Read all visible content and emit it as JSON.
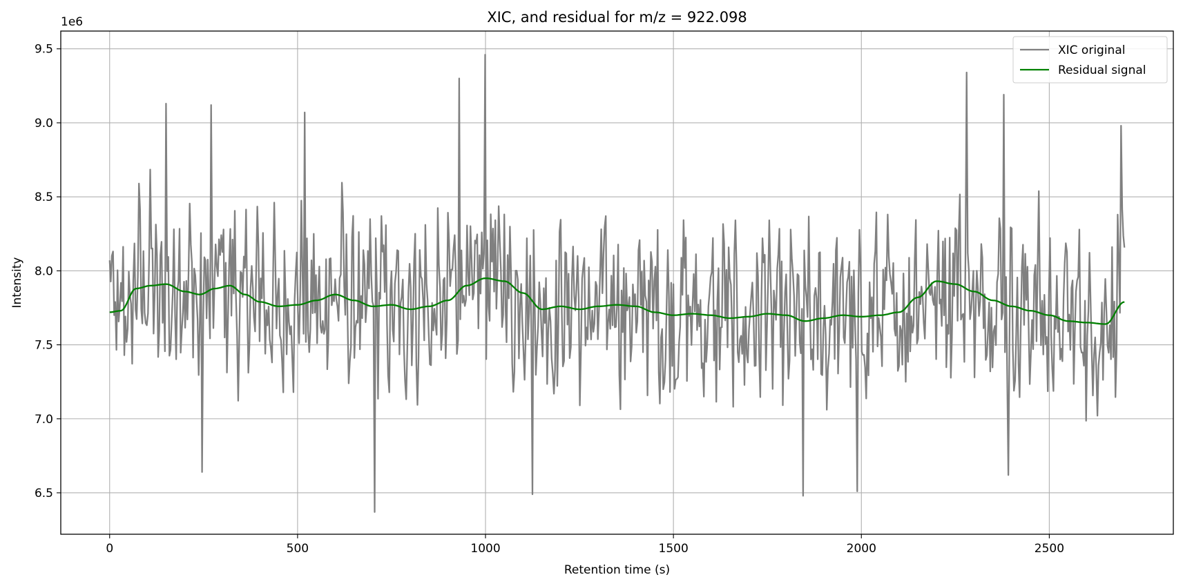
{
  "chart_data": {
    "type": "line",
    "title": "XIC, and residual for m/z = 922.098",
    "xlabel": "Retention time (s)",
    "ylabel": "Intensity",
    "y_offset_label": "1e6",
    "y_scale": 1000000,
    "xlim": [
      -130,
      2830
    ],
    "ylim": [
      6220000,
      9620000
    ],
    "x_ticks": [
      0,
      500,
      1000,
      1500,
      2000,
      2500
    ],
    "x_tick_labels": [
      "0",
      "500",
      "1000",
      "1500",
      "2000",
      "2500"
    ],
    "y_ticks": [
      6500000,
      7000000,
      7500000,
      8000000,
      8500000,
      9000000,
      9500000
    ],
    "y_tick_labels": [
      "6.5",
      "7.0",
      "7.5",
      "8.0",
      "8.5",
      "9.0",
      "9.5"
    ],
    "grid": true,
    "legend_position": "top-right",
    "series": [
      {
        "name": "XIC original",
        "color": "#808080",
        "note_shape": "dense noisy oscillation around the residual signal",
        "x_range": [
          0,
          2700
        ],
        "sample_step": 3,
        "spread_approx": 550000,
        "peaks": [
          {
            "x": 150,
            "y": 9130000
          },
          {
            "x": 270,
            "y": 9120000
          },
          {
            "x": 520,
            "y": 9070000
          },
          {
            "x": 930,
            "y": 9300000
          },
          {
            "x": 1000,
            "y": 9460000
          },
          {
            "x": 2280,
            "y": 9340000
          },
          {
            "x": 2380,
            "y": 9190000
          },
          {
            "x": 2690,
            "y": 8980000
          }
        ],
        "troughs": [
          {
            "x": 705,
            "y": 6370000
          },
          {
            "x": 1125,
            "y": 6490000
          },
          {
            "x": 1845,
            "y": 6480000
          },
          {
            "x": 1990,
            "y": 6510000
          },
          {
            "x": 245,
            "y": 6640000
          },
          {
            "x": 2390,
            "y": 6620000
          }
        ]
      },
      {
        "name": "Residual signal",
        "color": "#008000",
        "x": [
          0,
          30,
          70,
          110,
          150,
          200,
          240,
          280,
          320,
          360,
          400,
          450,
          500,
          550,
          600,
          650,
          700,
          750,
          800,
          850,
          900,
          950,
          1000,
          1050,
          1100,
          1150,
          1200,
          1250,
          1300,
          1350,
          1400,
          1450,
          1500,
          1550,
          1600,
          1650,
          1700,
          1750,
          1800,
          1850,
          1900,
          1950,
          2000,
          2050,
          2100,
          2150,
          2200,
          2250,
          2300,
          2350,
          2400,
          2450,
          2500,
          2550,
          2600,
          2650,
          2700
        ],
        "y": [
          7720000,
          7730000,
          7880000,
          7900000,
          7910000,
          7860000,
          7840000,
          7880000,
          7900000,
          7840000,
          7790000,
          7760000,
          7770000,
          7800000,
          7840000,
          7800000,
          7760000,
          7770000,
          7740000,
          7760000,
          7800000,
          7900000,
          7950000,
          7930000,
          7850000,
          7740000,
          7760000,
          7740000,
          7760000,
          7770000,
          7760000,
          7720000,
          7700000,
          7710000,
          7700000,
          7680000,
          7690000,
          7710000,
          7700000,
          7660000,
          7680000,
          7700000,
          7690000,
          7700000,
          7720000,
          7820000,
          7930000,
          7910000,
          7860000,
          7800000,
          7760000,
          7730000,
          7700000,
          7660000,
          7650000,
          7640000,
          7790000
        ]
      }
    ]
  }
}
